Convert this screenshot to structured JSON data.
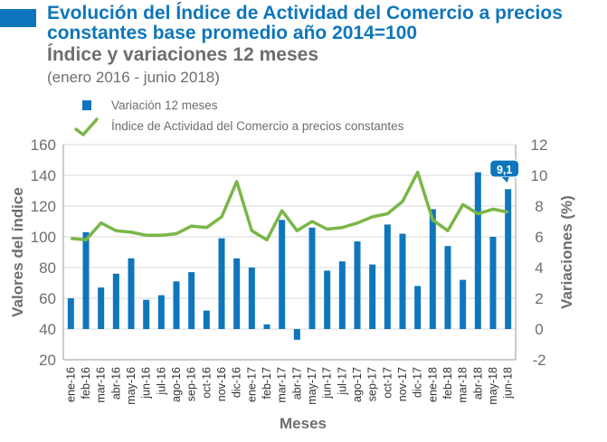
{
  "colors": {
    "accent": "#0e76bc",
    "title": "#0e76bc",
    "bar": "#0e76bc",
    "line": "#7ab648",
    "text": "#6d6e71",
    "grid": "#d9d9d9"
  },
  "title": "Evolución del Índice de Actividad del Comercio a precios constantes base promedio año 2014=100",
  "subtitle": "Índice y variaciones 12 meses",
  "period": "(enero 2016 - junio 2018)",
  "chart_data": {
    "type": "bar",
    "categories": [
      "ene-16",
      "feb-16",
      "mar-16",
      "abr-16",
      "may-16",
      "jun-16",
      "jul-16",
      "ago-16",
      "sep-16",
      "oct-16",
      "nov-16",
      "dic-16",
      "ene-17",
      "feb-17",
      "mar-17",
      "abr-17",
      "may-17",
      "jun-17",
      "jul-17",
      "ago-17",
      "sep-17",
      "oct-17",
      "nov-17",
      "dic-17",
      "ene-18",
      "feb-18",
      "mar-18",
      "abr-18",
      "may-18",
      "jun-18"
    ],
    "series": [
      {
        "name": "Variación 12 meses",
        "kind": "bar",
        "axis": "right",
        "values": [
          2.0,
          6.3,
          2.7,
          3.6,
          4.6,
          1.9,
          2.2,
          3.1,
          3.7,
          1.2,
          5.9,
          4.6,
          4.0,
          0.3,
          7.1,
          -0.7,
          6.6,
          3.8,
          4.4,
          5.7,
          4.2,
          6.8,
          6.2,
          2.8,
          7.8,
          5.4,
          3.2,
          10.2,
          6.0,
          9.1
        ]
      },
      {
        "name": "Índice de Actividad del Comercio a precios constantes",
        "kind": "line",
        "axis": "left",
        "values": [
          99,
          98,
          109,
          104,
          103,
          101,
          101,
          102,
          107,
          106,
          113,
          136,
          104,
          98,
          117,
          104,
          110,
          105,
          106,
          109,
          113,
          115,
          123,
          142,
          111,
          104,
          121,
          115,
          118,
          116
        ]
      }
    ],
    "annotation": {
      "category": "jun-18",
      "text": "9,1"
    },
    "xlabel": "Meses",
    "ylabel": "Valores del índice",
    "y2label": "Variaciones (%)",
    "ylim": [
      20,
      160
    ],
    "yticks": [
      20,
      40,
      60,
      80,
      100,
      120,
      140,
      160
    ],
    "y2lim": [
      -2,
      12
    ],
    "y2ticks": [
      -2,
      0,
      2,
      4,
      6,
      8,
      10,
      12
    ],
    "ytick_labels": [
      "20",
      "40",
      "60",
      "80",
      "100",
      "120",
      "140",
      "160"
    ],
    "y2tick_labels": [
      "-2",
      "0",
      "2",
      "4",
      "6",
      "8",
      "10",
      "12"
    ],
    "legend": [
      "Variación 12 meses",
      "Índice de Actividad del Comercio a precios constantes"
    ],
    "legend_position": "top",
    "grid": true
  }
}
